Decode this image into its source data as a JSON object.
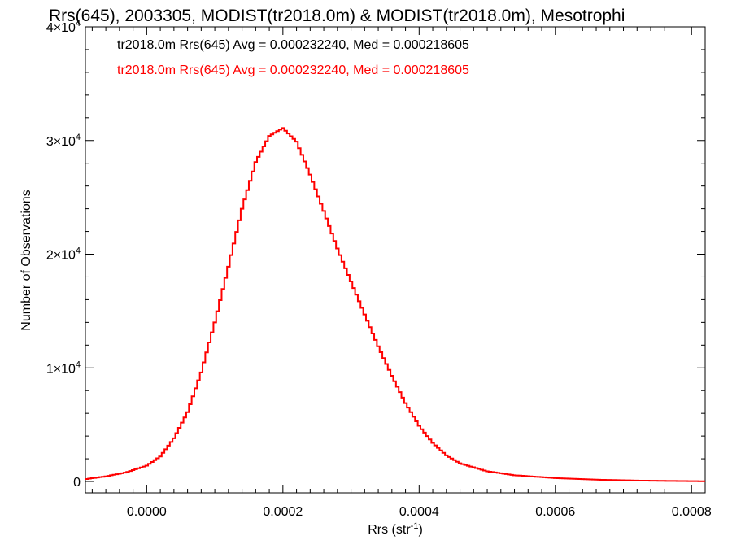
{
  "chart_data": {
    "type": "histogram",
    "title": "Rrs(645), 2003305, MODIST(tr2018.0m) & MODIST(tr2018.0m), Mesotrophi",
    "xlabel": "Rrs (str",
    "xlabel_sup": "-1",
    "xlabel_end": ")",
    "ylabel": "Number of Observations",
    "xlim": [
      -9e-05,
      0.00082
    ],
    "ylim": [
      -1000,
      40000
    ],
    "x_ticks": [
      {
        "value": 0.0,
        "label": "0.0000"
      },
      {
        "value": 0.0002,
        "label": "0.0002"
      },
      {
        "value": 0.0004,
        "label": "0.0004"
      },
      {
        "value": 0.0006,
        "label": "0.0006"
      },
      {
        "value": 0.0008,
        "label": "0.0008"
      }
    ],
    "y_ticks": [
      {
        "value": 0,
        "mant": "0",
        "exp": ""
      },
      {
        "value": 10000,
        "mant": "1×10",
        "exp": "4"
      },
      {
        "value": 20000,
        "mant": "2×10",
        "exp": "4"
      },
      {
        "value": 30000,
        "mant": "3×10",
        "exp": "4"
      },
      {
        "value": 40000,
        "mant": "4×10",
        "exp": "4"
      }
    ],
    "annotations": [
      {
        "text": "tr2018.0m Rrs(645) Avg = 0.000232240, Med = 0.000218605",
        "color": "#000000"
      },
      {
        "text": "tr2018.0m Rrs(645) Avg = 0.000232240, Med = 0.000218605",
        "color": "#ff0000"
      }
    ],
    "series": [
      {
        "color_front": "#ff0000",
        "color_back": "#000000",
        "points": [
          [
            -9e-05,
            200
          ],
          [
            -6e-05,
            450
          ],
          [
            -3e-05,
            800
          ],
          [
            0.0,
            1400
          ],
          [
            2e-05,
            2200
          ],
          [
            4e-05,
            3800
          ],
          [
            6e-05,
            6100
          ],
          [
            8e-05,
            9600
          ],
          [
            0.0001,
            14000
          ],
          [
            0.00012,
            18900
          ],
          [
            0.00014,
            24000
          ],
          [
            0.00016,
            28100
          ],
          [
            0.00018,
            30400
          ],
          [
            0.0002,
            31100
          ],
          [
            0.00022,
            29900
          ],
          [
            0.00024,
            27000
          ],
          [
            0.00026,
            23800
          ],
          [
            0.00028,
            20500
          ],
          [
            0.0003,
            17600
          ],
          [
            0.00032,
            14700
          ],
          [
            0.00034,
            11900
          ],
          [
            0.00036,
            9300
          ],
          [
            0.00038,
            6900
          ],
          [
            0.0004,
            4900
          ],
          [
            0.00042,
            3400
          ],
          [
            0.00044,
            2300
          ],
          [
            0.00046,
            1600
          ],
          [
            0.0005,
            900
          ],
          [
            0.00054,
            550
          ],
          [
            0.0006,
            300
          ],
          [
            0.00066,
            160
          ],
          [
            0.00072,
            80
          ],
          [
            0.00078,
            40
          ],
          [
            0.00082,
            20
          ]
        ]
      }
    ]
  }
}
